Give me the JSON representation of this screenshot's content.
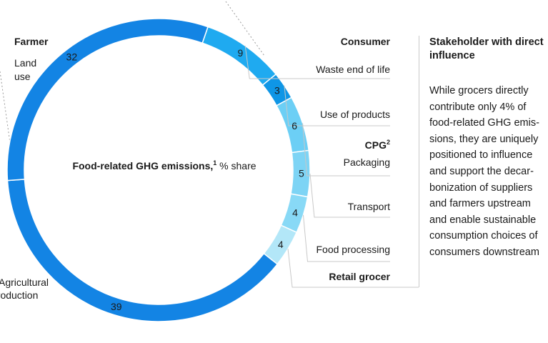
{
  "chart_data": {
    "type": "pie",
    "center_label": "Food-related GHG emissions,",
    "center_label_sup": "1",
    "center_label_suffix": " % share",
    "segments": [
      {
        "label": "Waste end of life",
        "value": 9,
        "display": "9",
        "group": "Consumer",
        "color": "#1faaf0"
      },
      {
        "label": "Use of products",
        "value": 3,
        "display": "3",
        "group": "Consumer",
        "color": "#0f96e6"
      },
      {
        "label": "Packaging",
        "value": 6,
        "display": "6",
        "group": "CPG",
        "color": "#6ccff5"
      },
      {
        "label": "Transport",
        "value": 5,
        "display": "5",
        "group": "CPG",
        "color": "#7dd4f5"
      },
      {
        "label": "Food processing",
        "value": 4,
        "display": "4",
        "group": "CPG",
        "color": "#88d9f6"
      },
      {
        "label": "",
        "value": 4,
        "display": "4",
        "group": "Retail grocer",
        "color": "#b3e7f8"
      },
      {
        "label": "Agricultural production",
        "value": 39,
        "display": "39",
        "group": "Farmer",
        "color": "#1384e4"
      },
      {
        "label": "Land use",
        "value": 32,
        "display": "32",
        "group": "Farmer",
        "color": "#1384e4"
      }
    ],
    "groups": [
      {
        "name": "Consumer",
        "sup": ""
      },
      {
        "name": "CPG",
        "sup": "2"
      },
      {
        "name": "Retail grocer",
        "sup": ""
      },
      {
        "name": "Farmer",
        "sup": ""
      }
    ],
    "segment_labels_outside": {
      "land_use": "Land use",
      "agricultural": "Agricultural production"
    },
    "colors": {
      "rule": "#c8c8c8",
      "dotted": "#9a9a9a",
      "text": "#1a1a1a"
    }
  },
  "panel": {
    "title": "Stakeholder with direct influence",
    "body": "While grocers directly contribute only 4% of food-related GHG emis- sions, they are uniquely positioned to influence and support the decar- bonization of suppliers and farmers upstream and enable sustainable consumption choices of consumers downstream"
  }
}
